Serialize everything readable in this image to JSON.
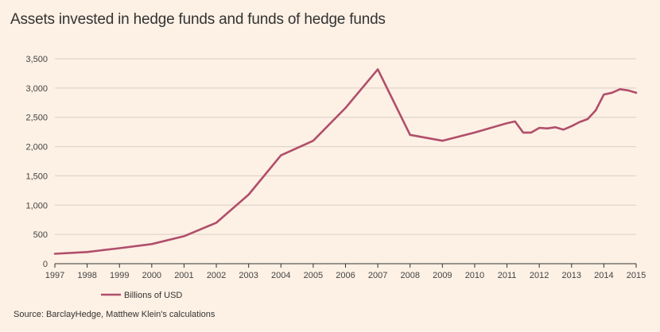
{
  "chart_data": {
    "type": "line",
    "title": "Assets invested in hedge funds and funds of hedge funds",
    "source": "Source: BarclayHedge, Matthew Klein's calculations",
    "xlabel": "",
    "ylabel": "",
    "xlim": [
      1997,
      2015
    ],
    "ylim": [
      0,
      3500
    ],
    "x_ticks": [
      "1997",
      "1998",
      "1999",
      "2000",
      "2001",
      "2002",
      "2003",
      "2004",
      "2005",
      "2006",
      "2007",
      "2008",
      "2009",
      "2010",
      "2011",
      "2012",
      "2013",
      "2014",
      "2015"
    ],
    "y_ticks": [
      "0",
      "500",
      "1,000",
      "1,500",
      "2,000",
      "2,500",
      "3,000",
      "3,500"
    ],
    "grid": "horizontal",
    "legend_position": "bottom-left",
    "colors": {
      "series": "#b04e6b",
      "grid": "#d9d0c7",
      "background": "#fdf0e4"
    },
    "series": [
      {
        "name": "Billions of USD",
        "x": [
          1997,
          1998,
          1999,
          2000,
          2001,
          2002,
          2003,
          2004,
          2005,
          2006,
          2007,
          2008,
          2009,
          2010,
          2011,
          2011.25,
          2011.5,
          2011.75,
          2012,
          2012.25,
          2012.5,
          2012.75,
          2013,
          2013.25,
          2013.5,
          2013.75,
          2014,
          2014.25,
          2014.5,
          2014.75,
          2015
        ],
        "values": [
          170,
          200,
          265,
          335,
          470,
          700,
          1180,
          1850,
          2100,
          2660,
          3320,
          2200,
          2100,
          2240,
          2400,
          2430,
          2240,
          2240,
          2320,
          2310,
          2330,
          2290,
          2350,
          2420,
          2470,
          2620,
          2890,
          2920,
          2980,
          2960,
          2920
        ]
      }
    ]
  }
}
